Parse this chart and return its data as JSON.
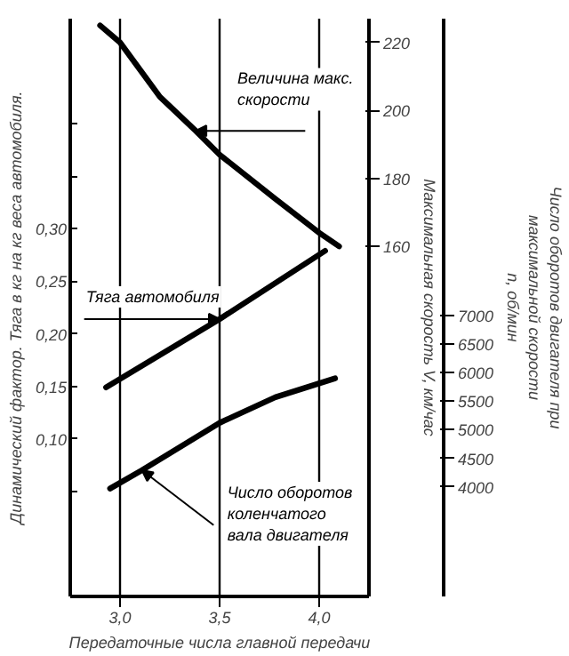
{
  "chart_data": {
    "type": "line",
    "xlabel": "Передаточные числа главной передачи",
    "ylabel": "Динамический фактор. Тяга в кг на кг веса автомобиля.",
    "y2label": "Максимальная скорость V, км/час",
    "y3label": "Число оборотов двигателя при\nмаксимальной скорости\nn, об/мин",
    "xlim": [
      2.75,
      4.25
    ],
    "xticks": [
      {
        "value": 3.0,
        "label": "3,0"
      },
      {
        "value": 3.5,
        "label": "3,5"
      },
      {
        "value": 4.0,
        "label": "4,0"
      }
    ],
    "ylim": [
      -0.05,
      0.5
    ],
    "yticks": [
      {
        "value": 0.05,
        "label": null
      },
      {
        "value": 0.1,
        "label": "0,10"
      },
      {
        "value": 0.15,
        "label": "0,15"
      },
      {
        "value": 0.2,
        "label": "0,20"
      },
      {
        "value": 0.25,
        "label": "0,25"
      },
      {
        "value": 0.3,
        "label": "0,30"
      },
      {
        "value": 0.35,
        "label": null
      },
      {
        "value": 0.4,
        "label": null
      }
    ],
    "y2lim": [
      57,
      227
    ],
    "y2ticks": [
      160,
      180,
      200,
      220
    ],
    "y3lim": [
      2080,
      12200
    ],
    "y3ticks": [
      4000,
      4500,
      5000,
      5500,
      6000,
      6500,
      7000
    ],
    "grid": "x",
    "marker": "none",
    "line_style": "solid",
    "series": [
      {
        "name": "Величина макс.\nскорости",
        "color": "#000000",
        "axis": "y2",
        "x": [
          2.9,
          3.0,
          3.2,
          3.38,
          3.5,
          3.78,
          4.0,
          4.1
        ],
        "values": [
          225,
          220,
          204,
          194,
          187,
          174,
          164,
          160
        ]
      },
      {
        "name": "Тяга автомобиля",
        "color": "#000000",
        "x": [
          2.93,
          3.5,
          4.03
        ],
        "values": [
          0.149,
          0.214,
          0.279
        ]
      },
      {
        "name": "Число оборотов\nколенчатого\nвала двигателя",
        "color": "#000000",
        "axis": "y3",
        "x": [
          2.95,
          3.11,
          3.5,
          3.78,
          4.08
        ],
        "values": [
          3970,
          4290,
          5120,
          5570,
          5900
        ]
      }
    ]
  }
}
